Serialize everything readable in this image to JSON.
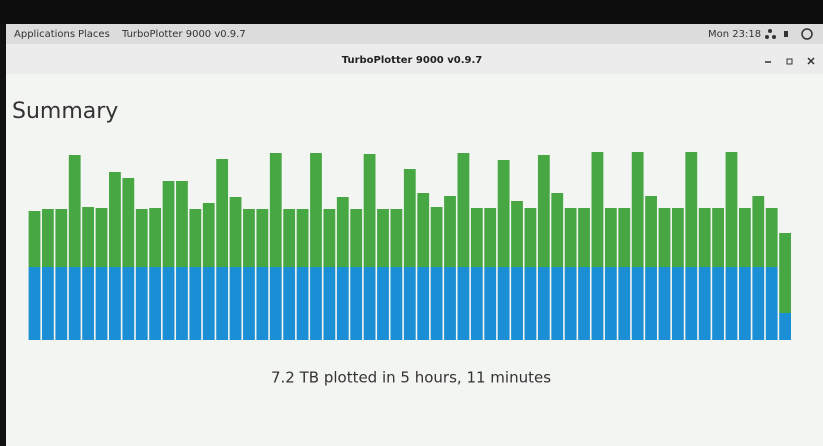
{
  "panel": {
    "applications": "Applications",
    "places": "Places",
    "task": "TurboPlotter 9000 v0.9.7",
    "clock": "Mon 23:18"
  },
  "window": {
    "title": "TurboPlotter 9000 v0.9.7"
  },
  "heading": "Summary",
  "footer": "7.2 TB plotted in 5 hours, 11 minutes",
  "chart_data": {
    "type": "bar",
    "stacked": true,
    "ylim": [
      0,
      190
    ],
    "series": [
      {
        "color": "#1a8fd6",
        "values": [
          73,
          73,
          73,
          73,
          73,
          73,
          73,
          73,
          73,
          73,
          73,
          73,
          73,
          73,
          73,
          73,
          73,
          73,
          73,
          73,
          73,
          73,
          73,
          73,
          73,
          73,
          73,
          73,
          73,
          73,
          73,
          73,
          73,
          73,
          73,
          73,
          73,
          73,
          73,
          73,
          73,
          73,
          73,
          73,
          73,
          73,
          73,
          73,
          73,
          73,
          73,
          73,
          73,
          73,
          73,
          73,
          27
        ]
      },
      {
        "color": "#47a843",
        "values": [
          56,
          58,
          58,
          112,
          60,
          59,
          95,
          89,
          58,
          59,
          86,
          86,
          58,
          64,
          108,
          70,
          58,
          58,
          114,
          58,
          58,
          114,
          58,
          70,
          58,
          113,
          58,
          58,
          98,
          74,
          60,
          71,
          114,
          59,
          59,
          107,
          66,
          59,
          112,
          74,
          59,
          59,
          115,
          59,
          59,
          115,
          71,
          59,
          59,
          115,
          59,
          59,
          115,
          59,
          71,
          59,
          80
        ]
      }
    ]
  }
}
